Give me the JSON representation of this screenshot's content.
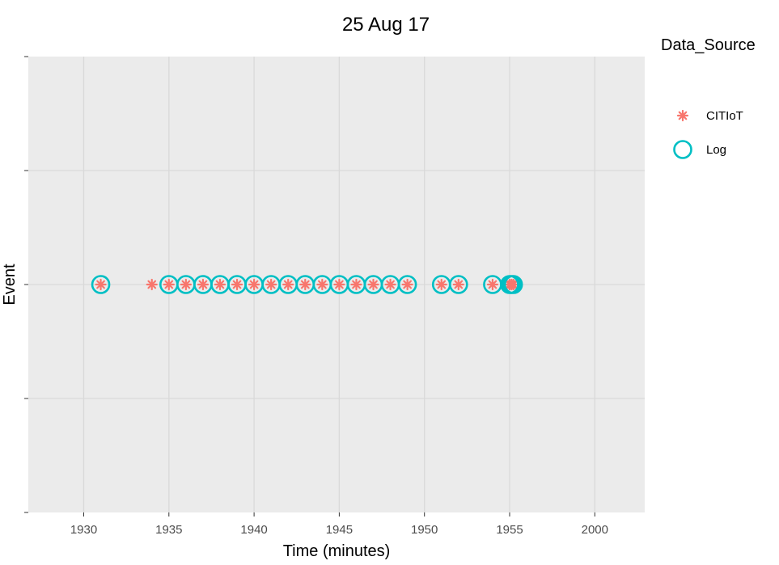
{
  "chart_data": {
    "type": "scatter",
    "title": "25 Aug 17",
    "xlabel": "Time (minutes)",
    "ylabel": "Event",
    "xlim": [
      1926.8,
      2003.2
    ],
    "xticks": [
      1930,
      1935,
      1940,
      1945,
      1950,
      1955,
      2000
    ],
    "xtick_labels": [
      "1930",
      "1935",
      "1940",
      "1945",
      "1950",
      "1955",
      "2000"
    ],
    "grid": true,
    "legend": {
      "title": "Data_Source",
      "position": "right",
      "entries": [
        {
          "label": "CITIoT",
          "marker": "asterisk",
          "color": "#F8766D"
        },
        {
          "label": "Log",
          "marker": "open-circle",
          "color": "#00BFC4"
        }
      ]
    },
    "series": [
      {
        "name": "CITIoT",
        "marker": "asterisk",
        "color": "#F8766D",
        "x": [
          1931,
          1934,
          1935,
          1936,
          1937,
          1938,
          1939,
          1940,
          1941,
          1942,
          1943,
          1944,
          1945,
          1946,
          1947,
          1948,
          1949,
          1951,
          1952,
          1954,
          1955,
          1956,
          1957
        ]
      },
      {
        "name": "Log",
        "marker": "open-circle",
        "color": "#00BFC4",
        "x": [
          1931,
          1935,
          1936,
          1937,
          1938,
          1939,
          1940,
          1941,
          1942,
          1943,
          1944,
          1945,
          1946,
          1947,
          1948,
          1949,
          1951,
          1952,
          1954,
          1955,
          1956,
          1957
        ]
      }
    ]
  }
}
